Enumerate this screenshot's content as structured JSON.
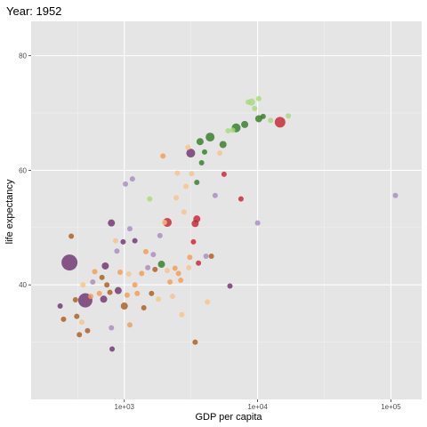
{
  "chart_data": {
    "type": "scatter",
    "title": "Year: 1952",
    "xlabel": "GDP per capita",
    "ylabel": "life expectancy",
    "x_scale": "log10",
    "xlim": [
      200,
      170000
    ],
    "ylim": [
      20,
      86
    ],
    "x_ticks": [
      {
        "value": 1000,
        "label": "1e+03"
      },
      {
        "value": 10000,
        "label": "1e+04"
      },
      {
        "value": 100000,
        "label": "1e+05"
      }
    ],
    "y_ticks": [
      {
        "value": 40,
        "label": "40"
      },
      {
        "value": 60,
        "label": "60"
      },
      {
        "value": 80,
        "label": "80"
      }
    ],
    "grid": true,
    "legend": "none",
    "colors": {
      "panel": "#e5e5e5",
      "grid_major": "#ffffff",
      "grid_minor": "#f0f0f0",
      "purple": "#6b2f6f",
      "light_purple": "#a989bf",
      "brown": "#a85a1c",
      "orange": "#f29b4c",
      "light_orange": "#f6c38a",
      "red": "#c8202c",
      "green": "#2f7a1f",
      "light_green": "#a8d977"
    },
    "points": [
      {
        "gdp": 388,
        "le": 43.9,
        "size": 9,
        "color": "purple"
      },
      {
        "gdp": 510,
        "le": 37.3,
        "size": 8,
        "color": "purple"
      },
      {
        "gdp": 14735,
        "le": 68.4,
        "size": 6,
        "color": "red"
      },
      {
        "gdp": 3150,
        "le": 63.0,
        "size": 5,
        "color": "purple"
      },
      {
        "gdp": 2100,
        "le": 50.9,
        "size": 5,
        "color": "red"
      },
      {
        "gdp": 6900,
        "le": 67.4,
        "size": 5,
        "color": "green"
      },
      {
        "gdp": 4400,
        "le": 65.8,
        "size": 5,
        "color": "green"
      },
      {
        "gdp": 3500,
        "le": 51.5,
        "size": 4,
        "color": "red"
      },
      {
        "gdp": 10200,
        "le": 69.0,
        "size": 4,
        "color": "green"
      },
      {
        "gdp": 9000,
        "le": 71.9,
        "size": 4,
        "color": "light_green"
      },
      {
        "gdp": 8000,
        "le": 68.0,
        "size": 4,
        "color": "green"
      },
      {
        "gdp": 700,
        "le": 37.5,
        "size": 4,
        "color": "purple"
      },
      {
        "gdp": 720,
        "le": 43.3,
        "size": 4,
        "color": "purple"
      },
      {
        "gdp": 800,
        "le": 50.8,
        "size": 4,
        "color": "purple"
      },
      {
        "gdp": 5500,
        "le": 64.5,
        "size": 4,
        "color": "green"
      },
      {
        "gdp": 3700,
        "le": 65.0,
        "size": 4,
        "color": "green"
      },
      {
        "gdp": 1900,
        "le": 43.6,
        "size": 4,
        "color": "green"
      },
      {
        "gdp": 3400,
        "le": 50.7,
        "size": 4,
        "color": "red"
      },
      {
        "gdp": 1000,
        "le": 36.3,
        "size": 4,
        "color": "brown"
      },
      {
        "gdp": 900,
        "le": 39.0,
        "size": 4,
        "color": "purple"
      },
      {
        "gdp": 330,
        "le": 36.3,
        "size": 3,
        "color": "purple"
      },
      {
        "gdp": 350,
        "le": 34.0,
        "size": 3,
        "color": "brown"
      },
      {
        "gdp": 400,
        "le": 48.5,
        "size": 3,
        "color": "brown"
      },
      {
        "gdp": 430,
        "le": 37.4,
        "size": 3,
        "color": "brown"
      },
      {
        "gdp": 440,
        "le": 34.5,
        "size": 3,
        "color": "brown"
      },
      {
        "gdp": 460,
        "le": 31.3,
        "size": 3,
        "color": "brown"
      },
      {
        "gdp": 480,
        "le": 33.5,
        "size": 3,
        "color": "light_orange"
      },
      {
        "gdp": 490,
        "le": 40.0,
        "size": 3,
        "color": "light_orange"
      },
      {
        "gdp": 530,
        "le": 32.0,
        "size": 3,
        "color": "brown"
      },
      {
        "gdp": 560,
        "le": 38.0,
        "size": 3,
        "color": "orange"
      },
      {
        "gdp": 580,
        "le": 40.5,
        "size": 3,
        "color": "light_purple"
      },
      {
        "gdp": 600,
        "le": 42.3,
        "size": 3,
        "color": "orange"
      },
      {
        "gdp": 650,
        "le": 38.5,
        "size": 3,
        "color": "orange"
      },
      {
        "gdp": 680,
        "le": 41.3,
        "size": 3,
        "color": "brown"
      },
      {
        "gdp": 740,
        "le": 40.0,
        "size": 3,
        "color": "brown"
      },
      {
        "gdp": 780,
        "le": 38.7,
        "size": 3,
        "color": "brown"
      },
      {
        "gdp": 800,
        "le": 32.5,
        "size": 3,
        "color": "light_purple"
      },
      {
        "gdp": 810,
        "le": 28.8,
        "size": 3,
        "color": "purple"
      },
      {
        "gdp": 860,
        "le": 47.7,
        "size": 3,
        "color": "light_orange"
      },
      {
        "gdp": 880,
        "le": 45.9,
        "size": 3,
        "color": "light_purple"
      },
      {
        "gdp": 930,
        "le": 42.2,
        "size": 3,
        "color": "orange"
      },
      {
        "gdp": 980,
        "le": 47.5,
        "size": 3,
        "color": "purple"
      },
      {
        "gdp": 1020,
        "le": 57.6,
        "size": 3,
        "color": "light_purple"
      },
      {
        "gdp": 1050,
        "le": 38.2,
        "size": 3,
        "color": "orange"
      },
      {
        "gdp": 1080,
        "le": 41.9,
        "size": 3,
        "color": "light_orange"
      },
      {
        "gdp": 1100,
        "le": 33.0,
        "size": 3,
        "color": "orange"
      },
      {
        "gdp": 1100,
        "le": 49.8,
        "size": 3,
        "color": "light_purple"
      },
      {
        "gdp": 1150,
        "le": 58.5,
        "size": 3,
        "color": "light_purple"
      },
      {
        "gdp": 1200,
        "le": 40.0,
        "size": 3,
        "color": "orange"
      },
      {
        "gdp": 1200,
        "le": 47.7,
        "size": 3,
        "color": "purple"
      },
      {
        "gdp": 1250,
        "le": 38.5,
        "size": 3,
        "color": "orange"
      },
      {
        "gdp": 1350,
        "le": 42.0,
        "size": 3,
        "color": "orange"
      },
      {
        "gdp": 1400,
        "le": 36.0,
        "size": 3,
        "color": "brown"
      },
      {
        "gdp": 1450,
        "le": 45.8,
        "size": 3,
        "color": "orange"
      },
      {
        "gdp": 1500,
        "le": 43.0,
        "size": 3,
        "color": "light_purple"
      },
      {
        "gdp": 1550,
        "le": 55.0,
        "size": 3,
        "color": "light_green"
      },
      {
        "gdp": 1600,
        "le": 38.5,
        "size": 3,
        "color": "brown"
      },
      {
        "gdp": 1650,
        "le": 45.3,
        "size": 3,
        "color": "light_purple"
      },
      {
        "gdp": 1700,
        "le": 42.7,
        "size": 3,
        "color": "brown"
      },
      {
        "gdp": 1800,
        "le": 37.5,
        "size": 3,
        "color": "light_orange"
      },
      {
        "gdp": 1850,
        "le": 48.6,
        "size": 3,
        "color": "light_purple"
      },
      {
        "gdp": 1950,
        "le": 62.5,
        "size": 3,
        "color": "orange"
      },
      {
        "gdp": 2000,
        "le": 50.9,
        "size": 3,
        "color": "light_orange"
      },
      {
        "gdp": 2100,
        "le": 42.5,
        "size": 3,
        "color": "light_orange"
      },
      {
        "gdp": 2200,
        "le": 40.5,
        "size": 3,
        "color": "orange"
      },
      {
        "gdp": 2300,
        "le": 38.0,
        "size": 3,
        "color": "light_orange"
      },
      {
        "gdp": 2400,
        "le": 42.9,
        "size": 3,
        "color": "orange"
      },
      {
        "gdp": 2450,
        "le": 55.2,
        "size": 3,
        "color": "light_orange"
      },
      {
        "gdp": 2500,
        "le": 59.5,
        "size": 3,
        "color": "light_orange"
      },
      {
        "gdp": 2550,
        "le": 42.0,
        "size": 3,
        "color": "orange"
      },
      {
        "gdp": 2650,
        "le": 40.8,
        "size": 3,
        "color": "orange"
      },
      {
        "gdp": 2700,
        "le": 34.8,
        "size": 3,
        "color": "light_orange"
      },
      {
        "gdp": 2800,
        "le": 52.7,
        "size": 3,
        "color": "light_orange"
      },
      {
        "gdp": 2900,
        "le": 57.2,
        "size": 3,
        "color": "light_orange"
      },
      {
        "gdp": 3000,
        "le": 64.0,
        "size": 3,
        "color": "light_orange"
      },
      {
        "gdp": 3050,
        "le": 43.0,
        "size": 3,
        "color": "light_orange"
      },
      {
        "gdp": 3100,
        "le": 44.8,
        "size": 3,
        "color": "orange"
      },
      {
        "gdp": 3200,
        "le": 59.4,
        "size": 3,
        "color": "light_orange"
      },
      {
        "gdp": 3300,
        "le": 47.5,
        "size": 3,
        "color": "red"
      },
      {
        "gdp": 3400,
        "le": 30.0,
        "size": 3,
        "color": "brown"
      },
      {
        "gdp": 3500,
        "le": 57.9,
        "size": 3,
        "color": "green"
      },
      {
        "gdp": 3600,
        "le": 43.8,
        "size": 3,
        "color": "red"
      },
      {
        "gdp": 3800,
        "le": 61.3,
        "size": 3,
        "color": "green"
      },
      {
        "gdp": 4000,
        "le": 63.2,
        "size": 3,
        "color": "green"
      },
      {
        "gdp": 4100,
        "le": 45.0,
        "size": 3,
        "color": "light_purple"
      },
      {
        "gdp": 4200,
        "le": 37.0,
        "size": 3,
        "color": "light_orange"
      },
      {
        "gdp": 4500,
        "le": 45.0,
        "size": 3,
        "color": "brown"
      },
      {
        "gdp": 4800,
        "le": 55.6,
        "size": 3,
        "color": "light_purple"
      },
      {
        "gdp": 5200,
        "le": 63.0,
        "size": 3,
        "color": "light_orange"
      },
      {
        "gdp": 5600,
        "le": 59.3,
        "size": 3,
        "color": "red"
      },
      {
        "gdp": 6000,
        "le": 66.9,
        "size": 3,
        "color": "light_green"
      },
      {
        "gdp": 6200,
        "le": 39.8,
        "size": 3,
        "color": "purple"
      },
      {
        "gdp": 6500,
        "le": 67.0,
        "size": 3,
        "color": "light_green"
      },
      {
        "gdp": 7500,
        "le": 55.0,
        "size": 3,
        "color": "red"
      },
      {
        "gdp": 8500,
        "le": 71.9,
        "size": 3,
        "color": "light_green"
      },
      {
        "gdp": 9500,
        "le": 70.8,
        "size": 3,
        "color": "light_green"
      },
      {
        "gdp": 10000,
        "le": 50.8,
        "size": 3,
        "color": "light_purple"
      },
      {
        "gdp": 10200,
        "le": 72.5,
        "size": 3,
        "color": "light_green"
      },
      {
        "gdp": 11000,
        "le": 69.4,
        "size": 3,
        "color": "green"
      },
      {
        "gdp": 12500,
        "le": 68.7,
        "size": 3,
        "color": "light_green"
      },
      {
        "gdp": 17000,
        "le": 69.5,
        "size": 3,
        "color": "light_green"
      },
      {
        "gdp": 108000,
        "le": 55.6,
        "size": 3,
        "color": "light_purple"
      }
    ]
  }
}
